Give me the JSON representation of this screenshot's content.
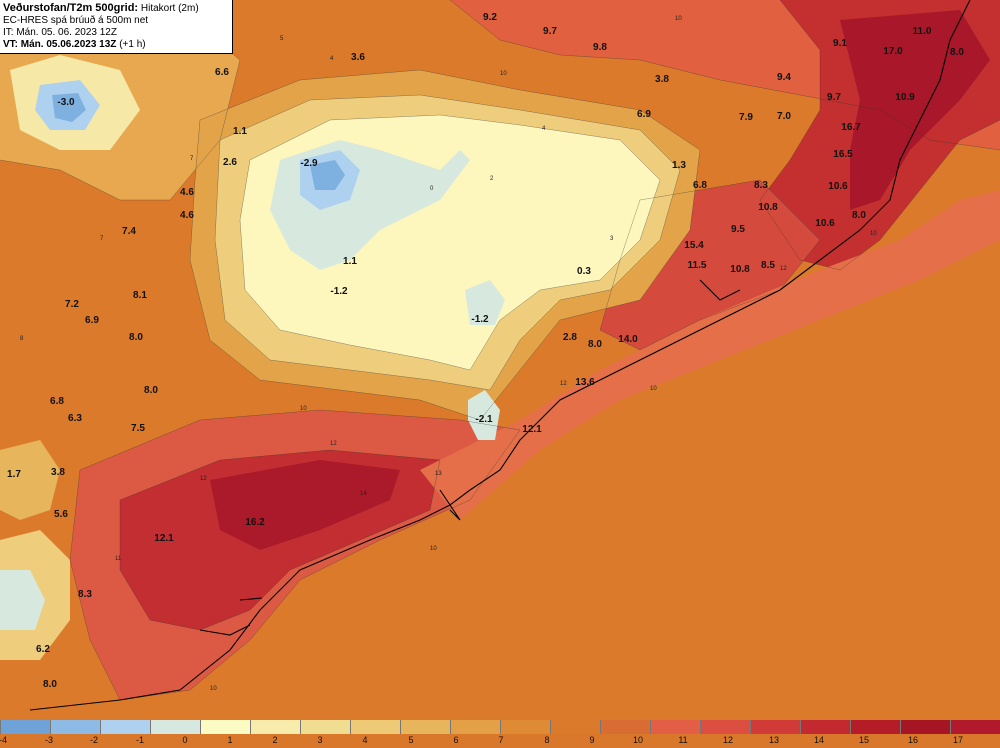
{
  "header": {
    "title": "Veðurstofan/T2m 500grid:",
    "title_suffix": "Hitakort (2m)",
    "line2": "EC-HRES spá brúuð á 500m net",
    "line3": "IT: Mán. 05. 06. 2023 12Z",
    "line4_bold": "VT: Mán. 05.06.2023 13Z",
    "line4_rest": "(+1 h)"
  },
  "legend": {
    "colors": [
      "#6fa3d8",
      "#8dbbe6",
      "#aed1f0",
      "#d6e8df",
      "#fdfbc4",
      "#f7ecab",
      "#f1dd92",
      "#ecca76",
      "#e7b55c",
      "#e3a047",
      "#df8a34",
      "#da7a2a",
      "#d96c33",
      "#e25f46",
      "#dc4e40",
      "#d03b38",
      "#c22a30",
      "#b41d28",
      "#a51523",
      "#b01a2c"
    ],
    "ticks": [
      "-4",
      "-3",
      "-2",
      "-1",
      "0",
      "1",
      "2",
      "3",
      "4",
      "5",
      "6",
      "7",
      "8",
      "9",
      "10",
      "11",
      "12",
      "13",
      "14",
      "15",
      "16",
      "17"
    ]
  },
  "map_labels": [
    {
      "t": "9.2"
    },
    {
      "t": "9.7"
    },
    {
      "t": "9.8"
    },
    {
      "t": "9.1"
    },
    {
      "t": "17.0"
    },
    {
      "t": "11.0"
    },
    {
      "t": "8.0"
    },
    {
      "t": "6.6"
    },
    {
      "t": "3.6"
    },
    {
      "t": "3.8"
    },
    {
      "t": "9.4"
    },
    {
      "t": "9.7"
    },
    {
      "t": "10.9"
    },
    {
      "t": "-3.0"
    },
    {
      "t": "1.1"
    },
    {
      "t": "6.9"
    },
    {
      "t": "7.9"
    },
    {
      "t": "7.0"
    },
    {
      "t": "16.7"
    },
    {
      "t": "2.6"
    },
    {
      "t": "-2.9"
    },
    {
      "t": "1.3"
    },
    {
      "t": "16.5"
    },
    {
      "t": "4.6"
    },
    {
      "t": "6.8"
    },
    {
      "t": "8.3"
    },
    {
      "t": "10.6"
    },
    {
      "t": "4.6"
    },
    {
      "t": "10.8"
    },
    {
      "t": "8.0"
    },
    {
      "t": "10.6"
    },
    {
      "t": "7.4"
    },
    {
      "t": "9.5"
    },
    {
      "t": "15.4"
    },
    {
      "t": "1.1"
    },
    {
      "t": "0.3"
    },
    {
      "t": "11.5"
    },
    {
      "t": "10.8"
    },
    {
      "t": "8.5"
    },
    {
      "t": "-1.2"
    },
    {
      "t": "8.1"
    },
    {
      "t": "7.2"
    },
    {
      "t": "6.9"
    },
    {
      "t": "-1.2"
    },
    {
      "t": "2.8"
    },
    {
      "t": "8.0"
    },
    {
      "t": "14.0"
    },
    {
      "t": "8.0"
    },
    {
      "t": "13.6"
    },
    {
      "t": "8.0"
    },
    {
      "t": "6.8"
    },
    {
      "t": "6.3"
    },
    {
      "t": "-2.1"
    },
    {
      "t": "7.5"
    },
    {
      "t": "12.1"
    },
    {
      "t": "1.7"
    },
    {
      "t": "3.8"
    },
    {
      "t": "5.6"
    },
    {
      "t": "16.2"
    },
    {
      "t": "12.1"
    },
    {
      "t": "8.3"
    },
    {
      "t": "6.2"
    },
    {
      "t": "8.0"
    }
  ]
}
